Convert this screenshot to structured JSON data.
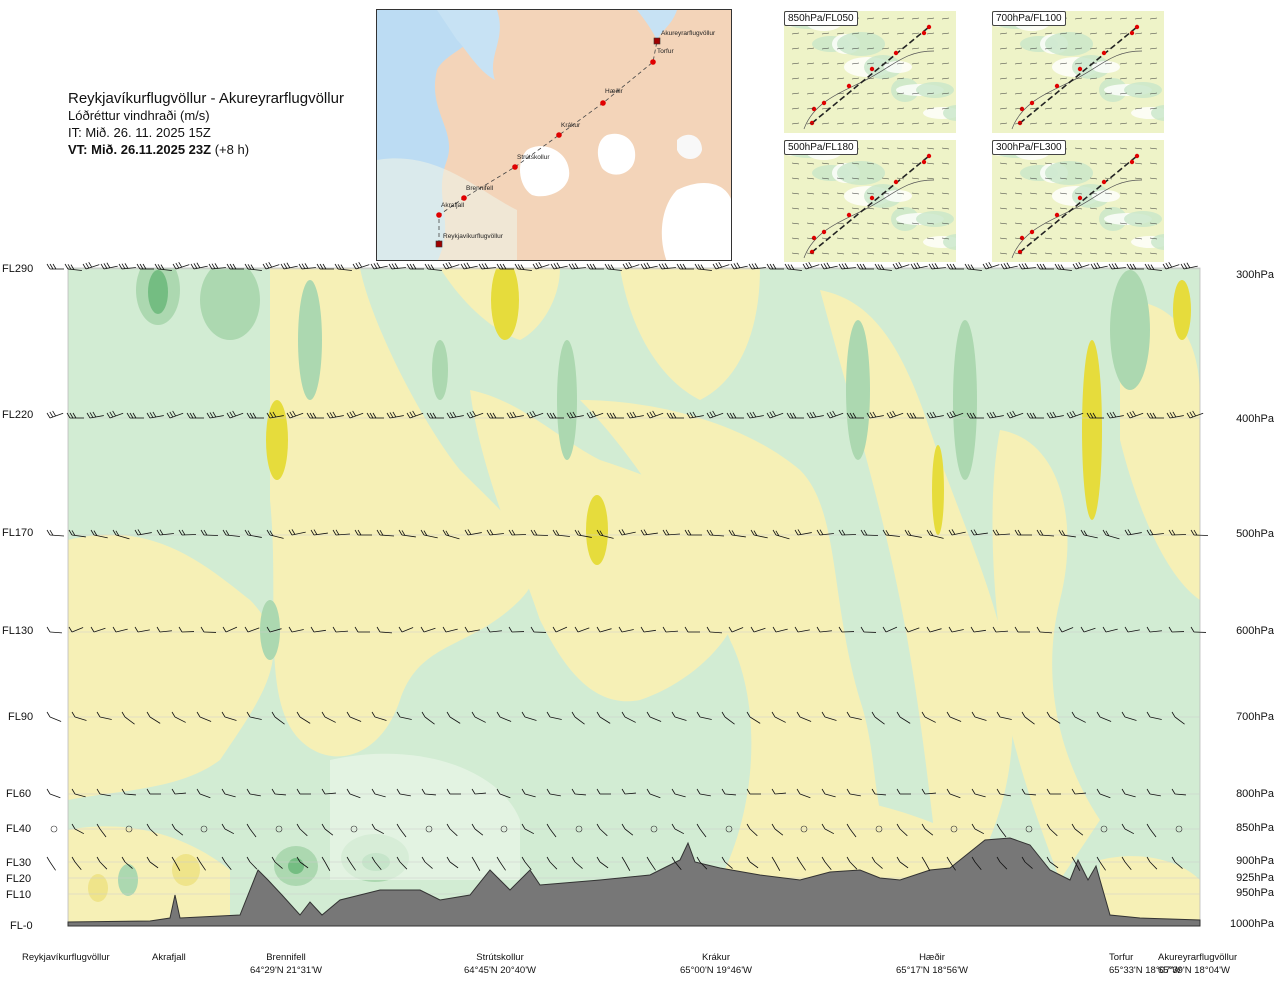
{
  "title": {
    "route": "Reykjavíkurflugvöllur - Akureyrarflugvöllur",
    "parameter": "Lóðréttur vindhraði (m/s)",
    "it": "IT: Mið. 26. 11. 2025 15Z",
    "vt_bold": "VT: Mið. 26.11.2025 23Z",
    "vt_suffix": "(+8 h)"
  },
  "route_map": {
    "points": [
      {
        "name": "Akureyrarflugvöllur",
        "type": "airport"
      },
      {
        "name": "Torfur",
        "type": "waypoint"
      },
      {
        "name": "Hæðir",
        "type": "waypoint"
      },
      {
        "name": "Krákur",
        "type": "waypoint"
      },
      {
        "name": "Strútskollur",
        "type": "waypoint"
      },
      {
        "name": "Brennifell",
        "type": "waypoint"
      },
      {
        "name": "Akrafjall",
        "type": "waypoint"
      },
      {
        "name": "Reykjavíkurflugvöllur",
        "type": "airport"
      }
    ]
  },
  "mini_maps": [
    {
      "label": "850hPa/FL050"
    },
    {
      "label": "700hPa/FL100"
    },
    {
      "label": "500hPa/FL180"
    },
    {
      "label": "300hPa/FL300"
    }
  ],
  "levels": [
    {
      "fl": "FL290",
      "p": "300hPa"
    },
    {
      "fl": "FL220",
      "p": "400hPa"
    },
    {
      "fl": "FL170",
      "p": "500hPa"
    },
    {
      "fl": "FL130",
      "p": "600hPa"
    },
    {
      "fl": "FL90",
      "p": "700hPa"
    },
    {
      "fl": "FL60",
      "p": "800hPa"
    },
    {
      "fl": "FL40",
      "p": "850hPa"
    },
    {
      "fl": "FL30",
      "p": "900hPa"
    },
    {
      "fl": "FL20",
      "p": "925hPa"
    },
    {
      "fl": "FL10",
      "p": "950hPa"
    },
    {
      "fl": "FL-0",
      "p": "1000hPa"
    }
  ],
  "locations": [
    {
      "name": "Reykjavíkurflugvöllur",
      "coord": ""
    },
    {
      "name": "Akrafjall",
      "coord": ""
    },
    {
      "name": "Brennifell",
      "coord": "64°29'N 21°31'W"
    },
    {
      "name": "Strútskollur",
      "coord": "64°45'N 20°40'W"
    },
    {
      "name": "Krákur",
      "coord": "65°00'N 19°46'W"
    },
    {
      "name": "Hæðir",
      "coord": "65°17'N 18°56'W"
    },
    {
      "name": "Torfur",
      "coord": "65°33'N 18°07'W"
    },
    {
      "name": "Akureyrarflugvöllur",
      "coord": "65°39'N 18°04'W"
    }
  ],
  "colors": {
    "green_light": "#d2ecd3",
    "green_mid": "#acd8b0",
    "green_dark": "#74bd82",
    "green_light_faint": "#eaf6e8",
    "yellow_light": "#f6f0b6",
    "yellow_mid": "#efe48a",
    "yellow_dark": "#e6dc3c",
    "terrain": "#777777",
    "map_land": "#f1c9a8",
    "map_sea": "#bcdcf3",
    "waypoint": "#e00000"
  }
}
